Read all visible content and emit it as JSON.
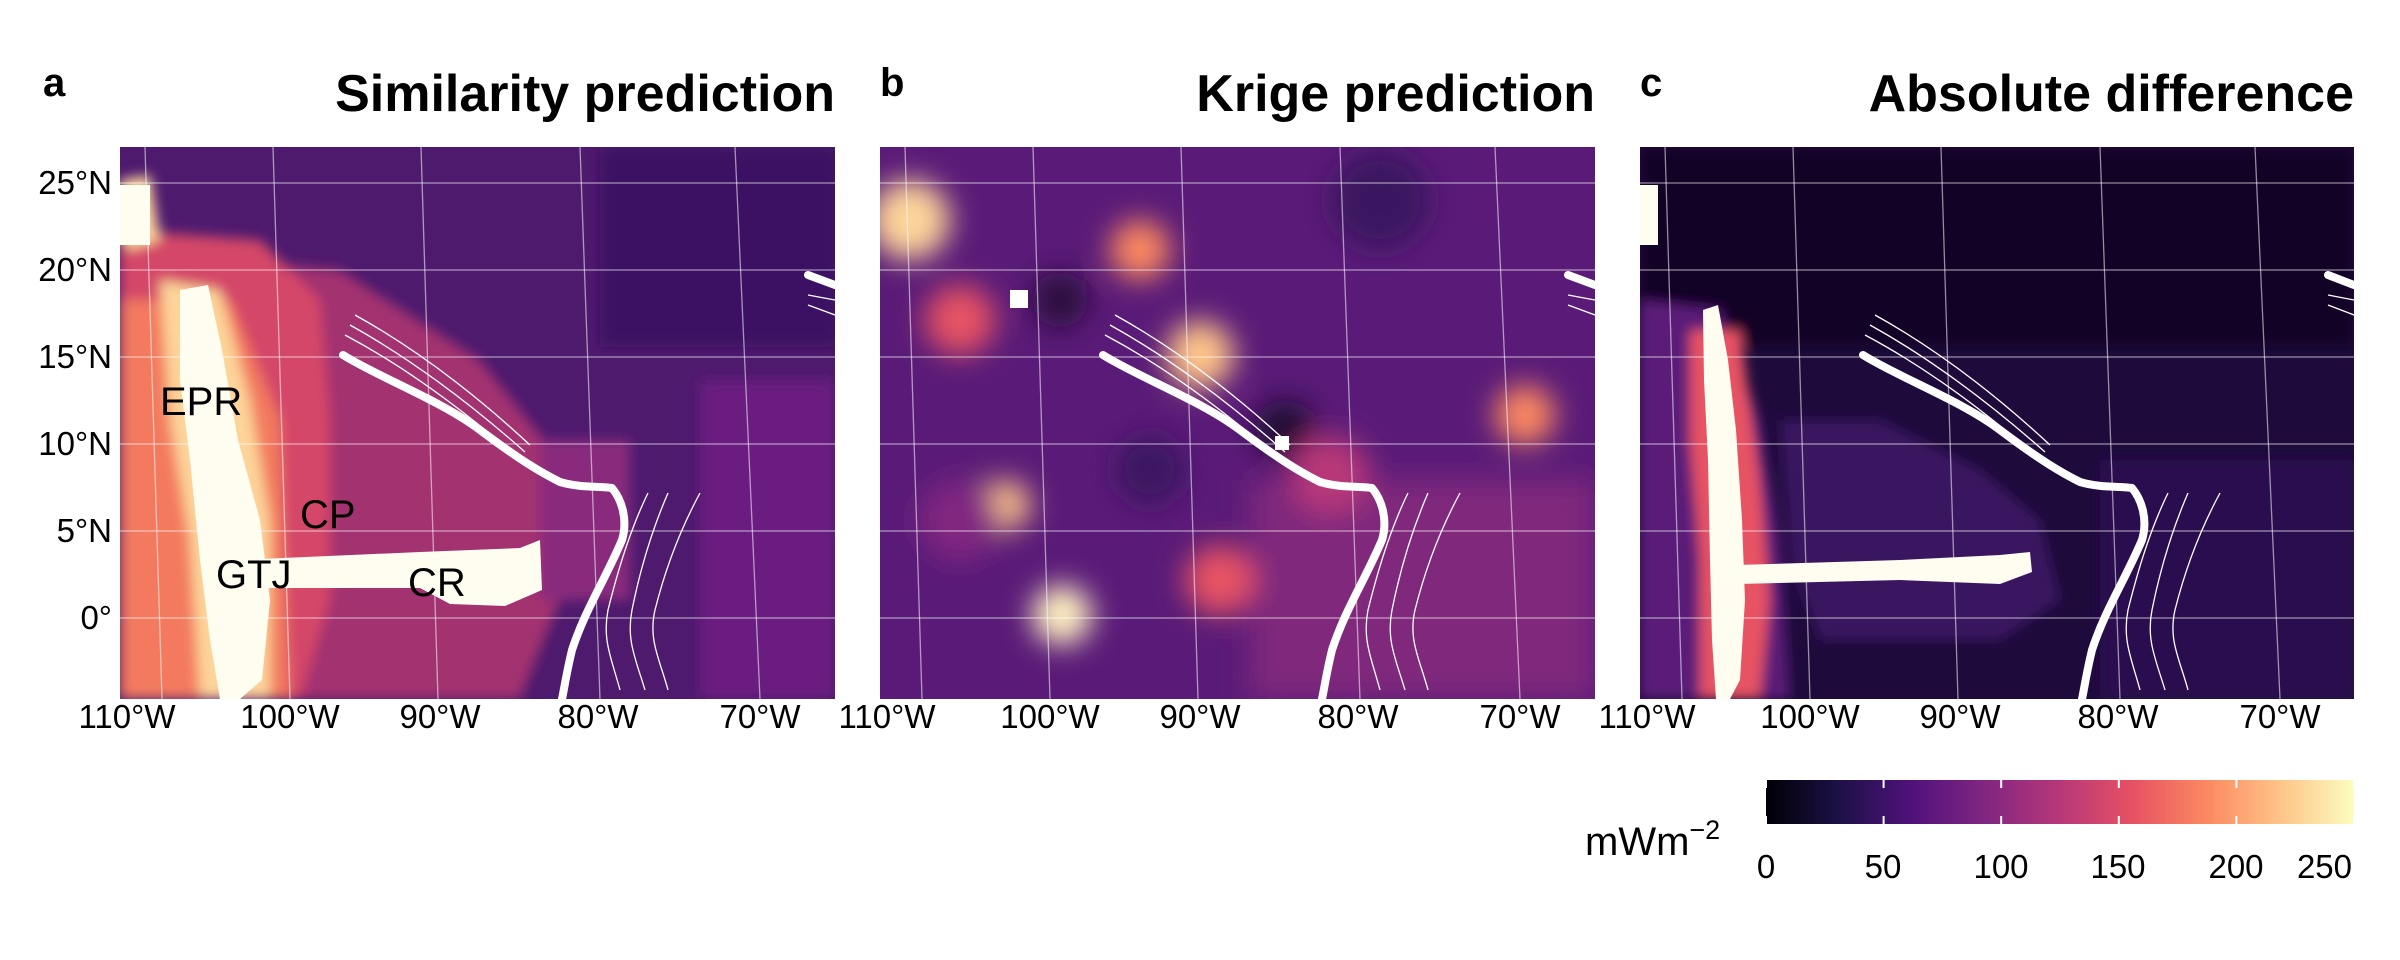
{
  "panels": [
    {
      "label": "a",
      "title": "Similarity prediction"
    },
    {
      "label": "b",
      "title": "Krige prediction"
    },
    {
      "label": "c",
      "title": "Absolute difference"
    }
  ],
  "lat_ticks": [
    "25°N",
    "20°N",
    "15°N",
    "10°N",
    "5°N",
    "0°"
  ],
  "lon_ticks": [
    "110°W",
    "100°W",
    "90°W",
    "80°W",
    "70°W"
  ],
  "features": [
    {
      "name": "EPR"
    },
    {
      "name": "CP"
    },
    {
      "name": "GTJ"
    },
    {
      "name": "CR"
    }
  ],
  "colorbar": {
    "unit": "mWm",
    "unit_exp": "−2",
    "ticks": [
      "0",
      "50",
      "100",
      "150",
      "200",
      "250"
    ],
    "min": 0,
    "max": 250,
    "colors": [
      "#000004",
      "#1d1147",
      "#51127c",
      "#822681",
      "#b73779",
      "#e75263",
      "#fc8961",
      "#fec488",
      "#fcfdbf"
    ]
  }
}
